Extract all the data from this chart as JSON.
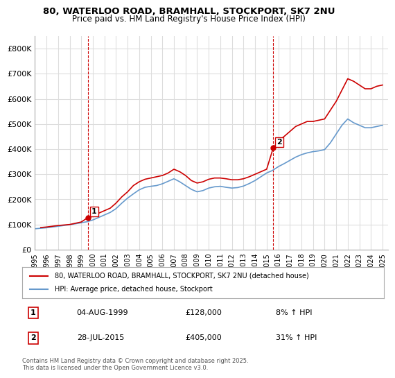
{
  "title_line1": "80, WATERLOO ROAD, BRAMHALL, STOCKPORT, SK7 2NU",
  "title_line2": "Price paid vs. HM Land Registry's House Price Index (HPI)",
  "ylabel_ticks": [
    "£0",
    "£100K",
    "£200K",
    "£300K",
    "£400K",
    "£500K",
    "£600K",
    "£700K",
    "£800K"
  ],
  "y_values": [
    0,
    100000,
    200000,
    300000,
    400000,
    500000,
    600000,
    700000,
    800000
  ],
  "ylim": [
    0,
    850000
  ],
  "xlim_start": 1995.0,
  "xlim_end": 2025.5,
  "x_ticks": [
    1995,
    1996,
    1997,
    1998,
    1999,
    2000,
    2001,
    2002,
    2003,
    2004,
    2005,
    2006,
    2007,
    2008,
    2009,
    2010,
    2011,
    2012,
    2013,
    2014,
    2015,
    2016,
    2017,
    2018,
    2019,
    2020,
    2021,
    2022,
    2023,
    2024,
    2025
  ],
  "house_color": "#cc0000",
  "hpi_color": "#6699cc",
  "vline_color": "#cc0000",
  "grid_color": "#dddddd",
  "bg_color": "#ffffff",
  "legend_box_color": "#000000",
  "point1_x": 1999.58,
  "point1_y": 128000,
  "point1_label": "1",
  "point1_date": "04-AUG-1999",
  "point1_price": "£128,000",
  "point1_hpi": "8% ↑ HPI",
  "point2_x": 2015.57,
  "point2_y": 405000,
  "point2_label": "2",
  "point2_date": "28-JUL-2015",
  "point2_price": "£405,000",
  "point2_hpi": "31% ↑ HPI",
  "legend_line1": "80, WATERLOO ROAD, BRAMHALL, STOCKPORT, SK7 2NU (detached house)",
  "legend_line2": "HPI: Average price, detached house, Stockport",
  "footer": "Contains HM Land Registry data © Crown copyright and database right 2025.\nThis data is licensed under the Open Government Licence v3.0.",
  "house_prices": {
    "years": [
      1995.5,
      1996.0,
      1996.5,
      1997.0,
      1997.5,
      1998.0,
      1998.5,
      1999.0,
      1999.58,
      2000.0,
      2000.5,
      2001.0,
      2001.5,
      2002.0,
      2002.5,
      2003.0,
      2003.5,
      2004.0,
      2004.5,
      2005.0,
      2005.5,
      2006.0,
      2006.5,
      2007.0,
      2007.5,
      2008.0,
      2008.5,
      2009.0,
      2009.5,
      2010.0,
      2010.5,
      2011.0,
      2011.5,
      2012.0,
      2012.5,
      2013.0,
      2013.5,
      2014.0,
      2014.5,
      2015.0,
      2015.57,
      2016.0,
      2016.5,
      2017.0,
      2017.5,
      2018.0,
      2018.5,
      2019.0,
      2019.5,
      2020.0,
      2020.5,
      2021.0,
      2021.5,
      2022.0,
      2022.5,
      2023.0,
      2023.5,
      2024.0,
      2024.5,
      2025.0
    ],
    "values": [
      88000,
      90000,
      93000,
      96000,
      98000,
      100000,
      105000,
      110000,
      128000,
      132000,
      145000,
      155000,
      165000,
      185000,
      210000,
      230000,
      255000,
      270000,
      280000,
      285000,
      290000,
      295000,
      305000,
      320000,
      310000,
      295000,
      275000,
      265000,
      270000,
      280000,
      285000,
      285000,
      282000,
      278000,
      278000,
      282000,
      290000,
      300000,
      310000,
      320000,
      405000,
      430000,
      450000,
      470000,
      490000,
      500000,
      510000,
      510000,
      515000,
      520000,
      555000,
      590000,
      635000,
      680000,
      670000,
      655000,
      640000,
      640000,
      650000,
      655000
    ]
  },
  "hpi_prices": {
    "years": [
      1995.0,
      1995.5,
      1996.0,
      1996.5,
      1997.0,
      1997.5,
      1998.0,
      1998.5,
      1999.0,
      1999.5,
      2000.0,
      2000.5,
      2001.0,
      2001.5,
      2002.0,
      2002.5,
      2003.0,
      2003.5,
      2004.0,
      2004.5,
      2005.0,
      2005.5,
      2006.0,
      2006.5,
      2007.0,
      2007.5,
      2008.0,
      2008.5,
      2009.0,
      2009.5,
      2010.0,
      2010.5,
      2011.0,
      2011.5,
      2012.0,
      2012.5,
      2013.0,
      2013.5,
      2014.0,
      2014.5,
      2015.0,
      2015.5,
      2016.0,
      2016.5,
      2017.0,
      2017.5,
      2018.0,
      2018.5,
      2019.0,
      2019.5,
      2020.0,
      2020.5,
      2021.0,
      2021.5,
      2022.0,
      2022.5,
      2023.0,
      2023.5,
      2024.0,
      2024.5,
      2025.0
    ],
    "values": [
      83000,
      85000,
      87000,
      90000,
      93000,
      96000,
      99000,
      103000,
      107000,
      111000,
      118000,
      128000,
      138000,
      148000,
      163000,
      185000,
      205000,
      222000,
      238000,
      248000,
      252000,
      255000,
      262000,
      272000,
      282000,
      270000,
      255000,
      240000,
      230000,
      235000,
      245000,
      250000,
      252000,
      248000,
      245000,
      247000,
      253000,
      263000,
      275000,
      290000,
      305000,
      315000,
      330000,
      342000,
      355000,
      368000,
      378000,
      385000,
      390000,
      393000,
      398000,
      425000,
      460000,
      495000,
      520000,
      505000,
      495000,
      485000,
      485000,
      490000,
      495000
    ]
  }
}
